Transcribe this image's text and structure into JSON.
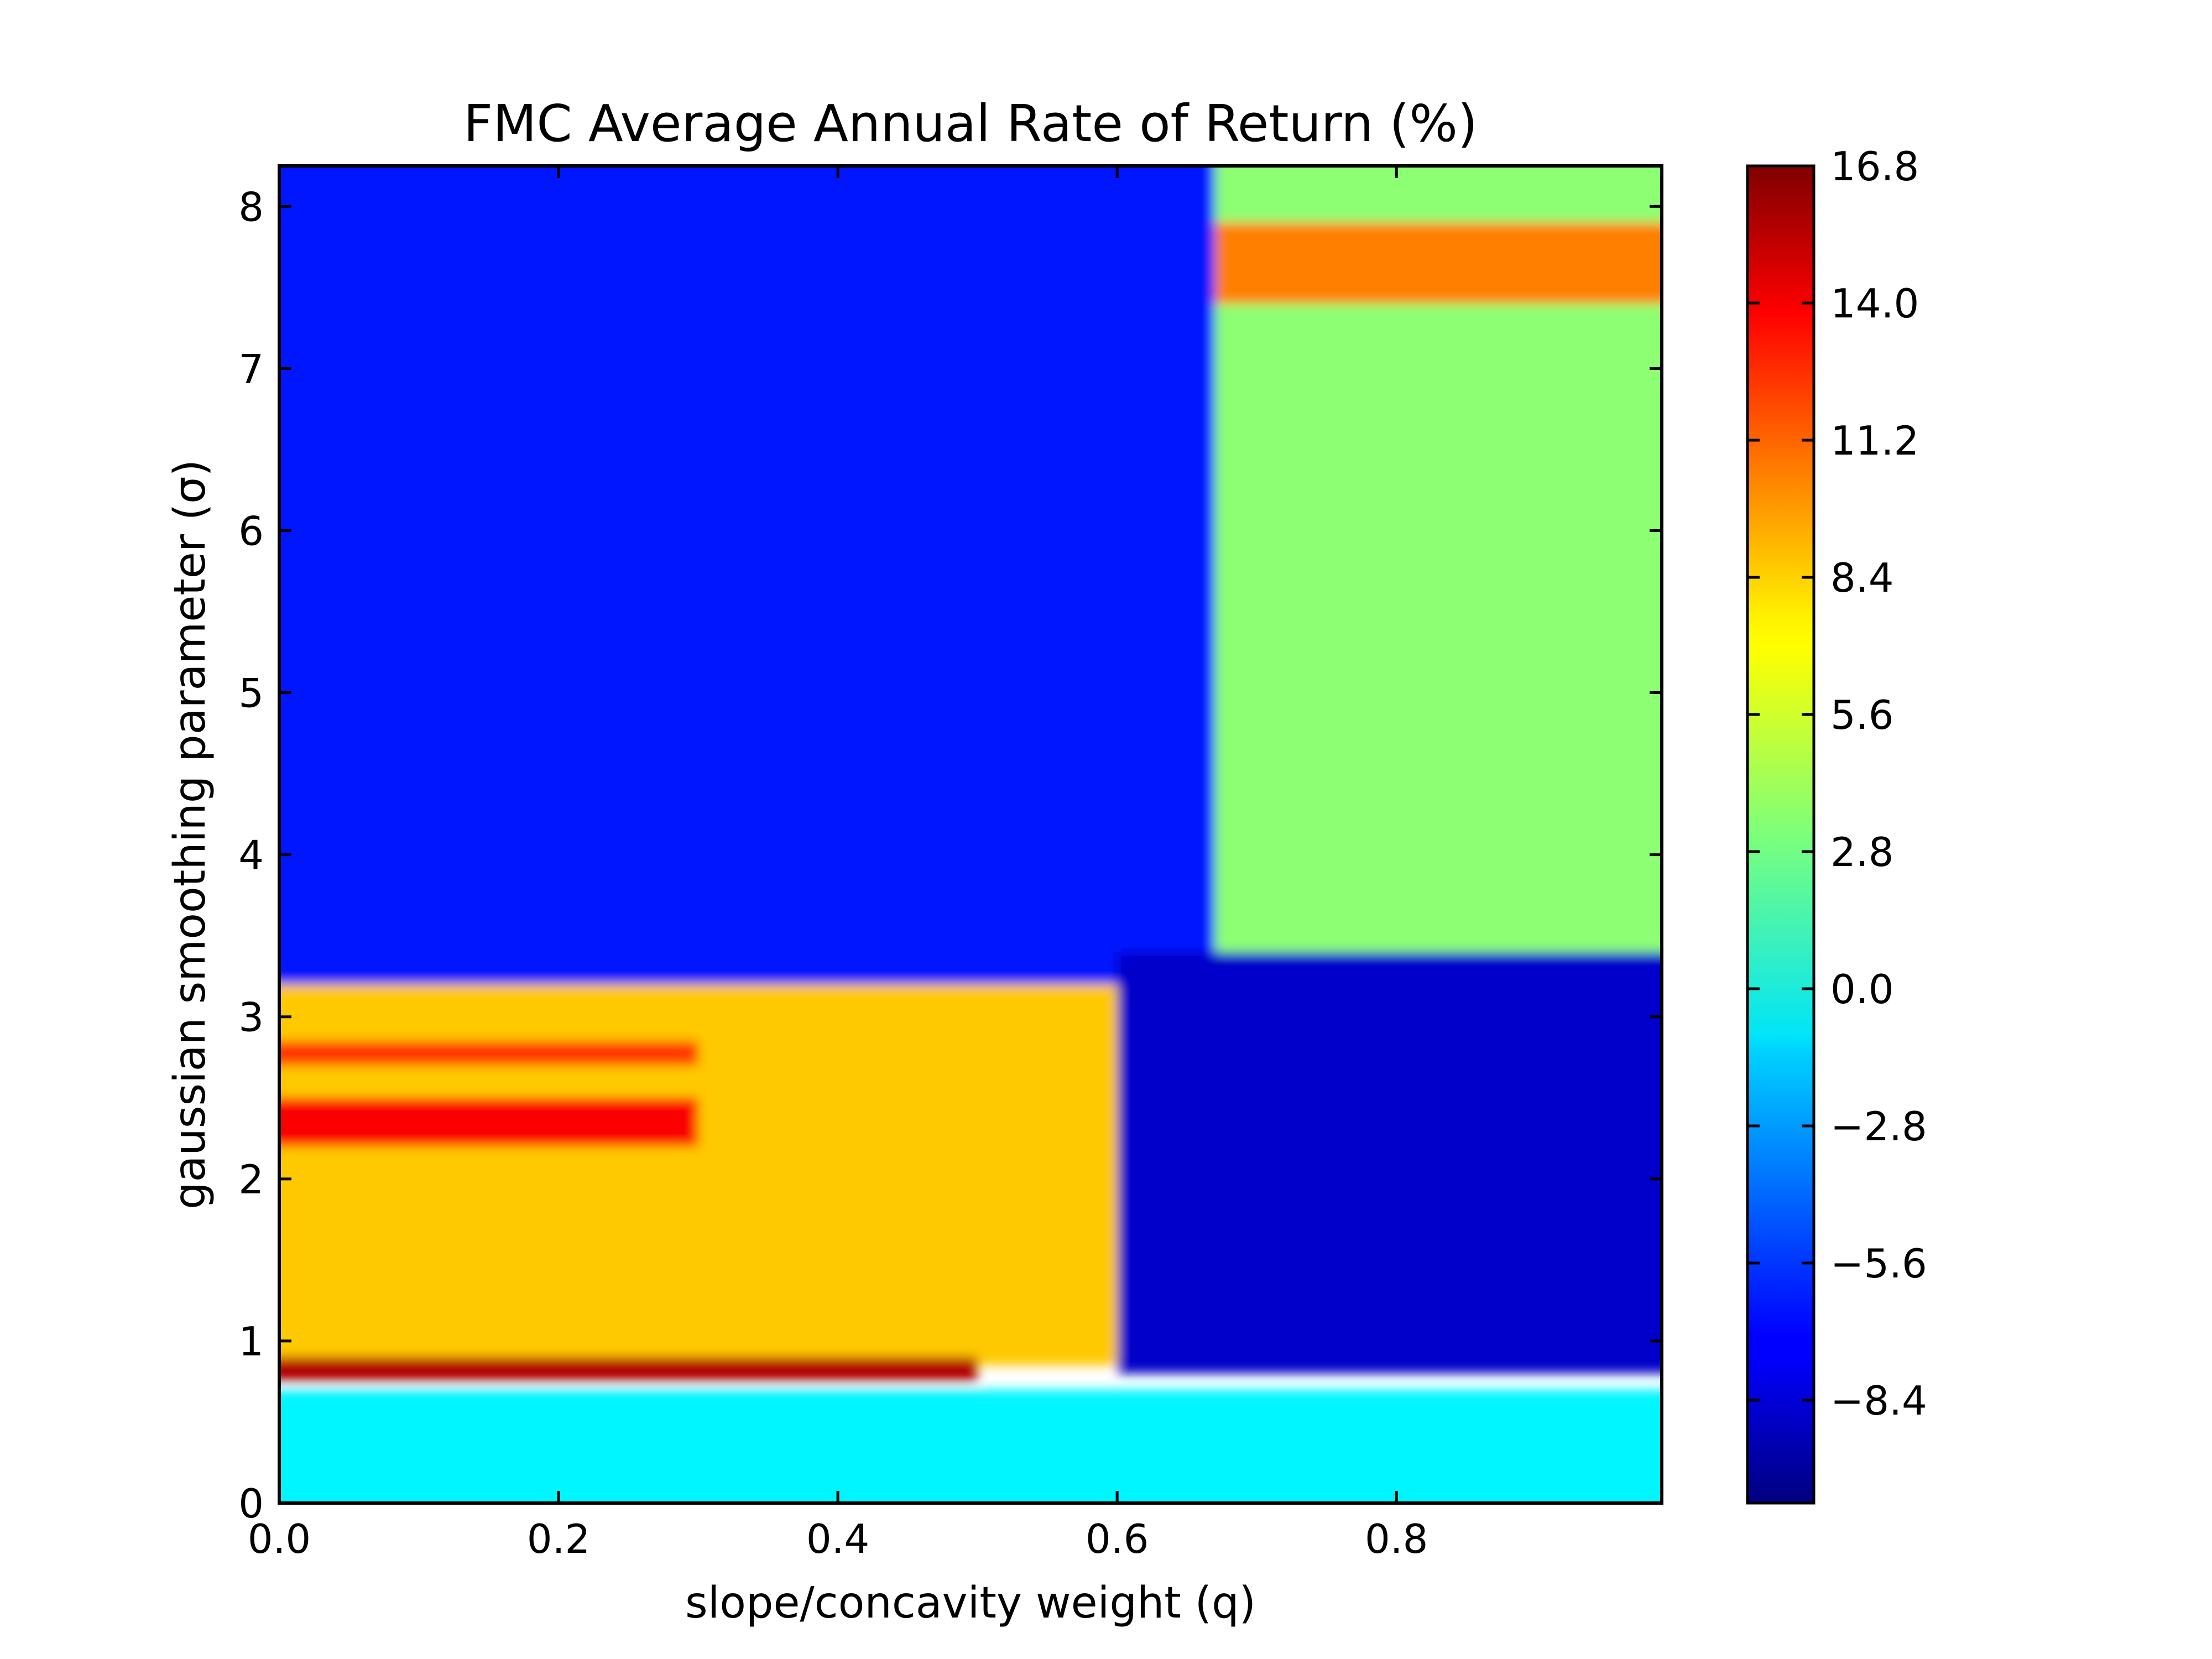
{
  "chart_data": {
    "type": "heatmap",
    "title": "FMC Average Annual Rate of Return (%)",
    "xlabel": "slope/concavity weight (q)",
    "ylabel": "gaussian smoothing parameter (σ)",
    "xlim": [
      0.0,
      0.99
    ],
    "ylim": [
      0.0,
      8.25
    ],
    "xticks": [
      0.0,
      0.2,
      0.4,
      0.6,
      0.8
    ],
    "xtick_labels": [
      "0.0",
      "0.2",
      "0.4",
      "0.6",
      "0.8"
    ],
    "yticks": [
      0,
      1,
      2,
      3,
      4,
      5,
      6,
      7,
      8
    ],
    "ytick_labels": [
      "0",
      "1",
      "2",
      "3",
      "4",
      "5",
      "6",
      "7",
      "8"
    ],
    "colormap": "jet",
    "colorbar": {
      "range": [
        -10.5,
        16.8
      ],
      "ticks": [
        16.8,
        14.0,
        11.2,
        8.4,
        5.6,
        2.8,
        0.0,
        -2.8,
        -5.6,
        -8.4
      ],
      "tick_labels": [
        "16.8",
        "14.0",
        "11.2",
        "8.4",
        "5.6",
        "2.8",
        "0.0",
        "−2.8",
        "−5.6",
        "−8.4"
      ]
    },
    "grid": false,
    "summary_regions": [
      {
        "q_range": [
          0.0,
          0.67
        ],
        "sigma_range": [
          3.2,
          8.25
        ],
        "approx_return": -6.5
      },
      {
        "q_range": [
          0.67,
          0.99
        ],
        "sigma_range": [
          3.4,
          8.25
        ],
        "approx_return": 3.5
      },
      {
        "q_range": [
          0.67,
          0.99
        ],
        "sigma_range": [
          7.4,
          7.9
        ],
        "approx_return": 10.0
      },
      {
        "q_range": [
          0.0,
          0.6
        ],
        "sigma_range": [
          0.85,
          3.2
        ],
        "approx_return": 8.0
      },
      {
        "q_range": [
          0.0,
          0.5
        ],
        "sigma_range": [
          0.75,
          0.9
        ],
        "approx_return": 15.5
      },
      {
        "q_range": [
          0.0,
          0.3
        ],
        "sigma_range": [
          2.2,
          2.5
        ],
        "approx_return": 13.5
      },
      {
        "q_range": [
          0.0,
          0.3
        ],
        "sigma_range": [
          2.7,
          2.85
        ],
        "approx_return": 12.0
      },
      {
        "q_range": [
          0.6,
          0.99
        ],
        "sigma_range": [
          0.8,
          3.4
        ],
        "approx_return": -8.5
      },
      {
        "q_range": [
          0.0,
          0.99
        ],
        "sigma_range": [
          0.0,
          0.7
        ],
        "approx_return": -0.5
      }
    ]
  }
}
